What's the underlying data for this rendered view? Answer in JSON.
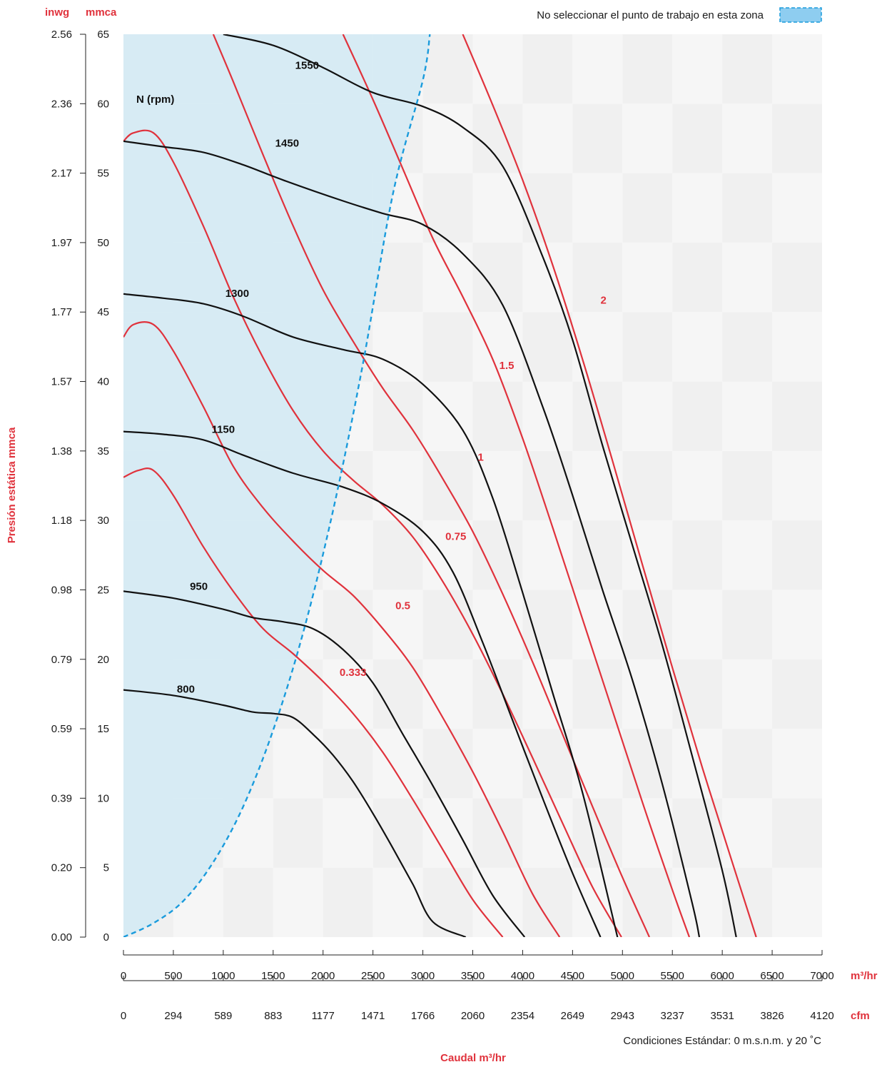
{
  "chart_data": {
    "type": "line",
    "title": "",
    "units": {
      "left_outer": "inwg",
      "left_inner": "mmca",
      "x_primary": "m³/hr",
      "x_secondary": "cfm"
    },
    "ylabel": "Presión estática mmca",
    "xlabel": "Caudal m³/hr",
    "note": "Condiciones Estándar: 0 m.s.n.m. y 20 ˚C",
    "legend": {
      "text": "No seleccionar el punto de trabajo en esta zona",
      "placement": "top-right",
      "color": "#8ecdf0"
    },
    "rpm_header": "N (rpm)",
    "xlim": [
      0,
      7000
    ],
    "ylim": [
      0,
      65
    ],
    "x_ticks": [
      0,
      500,
      1000,
      1500,
      2000,
      2500,
      3000,
      3500,
      4000,
      4500,
      5000,
      5500,
      6000,
      6500,
      7000
    ],
    "x_tick_labels": [
      "0",
      "500",
      "1000",
      "1500",
      "2000",
      "2500",
      "3000",
      "3500",
      "4000",
      "4500",
      "5000",
      "5500",
      "6000",
      "6500",
      "7000"
    ],
    "cfm_tick_labels": [
      "0",
      "294",
      "589",
      "883",
      "1177",
      "1471",
      "1766",
      "2060",
      "2354",
      "2649",
      "2943",
      "3237",
      "3531",
      "3826",
      "4120"
    ],
    "y_ticks": [
      0,
      5,
      10,
      15,
      20,
      25,
      30,
      35,
      40,
      45,
      50,
      55,
      60,
      65
    ],
    "y_tick_labels": [
      "0",
      "5",
      "10",
      "15",
      "20",
      "25",
      "30",
      "35",
      "40",
      "45",
      "50",
      "55",
      "60",
      "65"
    ],
    "inwg_tick_labels": [
      "0.00",
      "0.20",
      "0.39",
      "0.59",
      "0.79",
      "0.98",
      "1.18",
      "1.38",
      "1.57",
      "1.77",
      "1.97",
      "2.17",
      "2.36",
      "2.56"
    ],
    "colors": {
      "rpm": "#111111",
      "power": "#e0323c",
      "zone": "#d4eaf4",
      "boundary": "#1a9bdc",
      "band": "#f1f1f1",
      "unit_text": "#e0323c"
    },
    "rpm_curves": [
      {
        "name": "800",
        "label_at": [
          625,
          17.6
        ],
        "points": [
          [
            0,
            17.8
          ],
          [
            500,
            17.4
          ],
          [
            1000,
            16.7
          ],
          [
            1300,
            16.2
          ],
          [
            1500,
            16.1
          ],
          [
            1700,
            15.8
          ],
          [
            1900,
            14.6
          ],
          [
            2100,
            13.1
          ],
          [
            2300,
            11.2
          ],
          [
            2500,
            8.9
          ],
          [
            2700,
            6.4
          ],
          [
            2900,
            3.8
          ],
          [
            3100,
            1.1
          ],
          [
            3430,
            0
          ]
        ]
      },
      {
        "name": "950",
        "label_at": [
          755,
          25.0
        ],
        "points": [
          [
            0,
            24.9
          ],
          [
            500,
            24.4
          ],
          [
            1000,
            23.6
          ],
          [
            1300,
            23.0
          ],
          [
            1600,
            22.7
          ],
          [
            1900,
            22.2
          ],
          [
            2200,
            20.7
          ],
          [
            2500,
            18.3
          ],
          [
            2800,
            14.6
          ],
          [
            3100,
            10.9
          ],
          [
            3400,
            7.0
          ],
          [
            3700,
            3.0
          ],
          [
            4020,
            0
          ]
        ]
      },
      {
        "name": "1150",
        "label_at": [
          1000,
          36.3
        ],
        "points": [
          [
            0,
            36.4
          ],
          [
            400,
            36.2
          ],
          [
            800,
            35.8
          ],
          [
            1200,
            34.7
          ],
          [
            1700,
            33.4
          ],
          [
            2200,
            32.4
          ],
          [
            2600,
            31.2
          ],
          [
            3000,
            29.2
          ],
          [
            3300,
            26.3
          ],
          [
            3600,
            21.2
          ],
          [
            3900,
            15.6
          ],
          [
            4200,
            10.0
          ],
          [
            4500,
            4.6
          ],
          [
            4780,
            0
          ]
        ]
      },
      {
        "name": "1300",
        "label_at": [
          1140,
          46.1
        ],
        "points": [
          [
            0,
            46.3
          ],
          [
            400,
            46.0
          ],
          [
            800,
            45.6
          ],
          [
            1200,
            44.7
          ],
          [
            1700,
            43.2
          ],
          [
            2200,
            42.3
          ],
          [
            2600,
            41.6
          ],
          [
            3000,
            39.8
          ],
          [
            3400,
            36.5
          ],
          [
            3700,
            31.6
          ],
          [
            4000,
            24.8
          ],
          [
            4300,
            17.6
          ],
          [
            4600,
            10.4
          ],
          [
            4950,
            0
          ]
        ]
      },
      {
        "name": "1450",
        "label_at": [
          1640,
          56.9
        ],
        "points": [
          [
            0,
            57.3
          ],
          [
            400,
            56.9
          ],
          [
            800,
            56.5
          ],
          [
            1200,
            55.6
          ],
          [
            1600,
            54.5
          ],
          [
            2200,
            53.0
          ],
          [
            2600,
            52.1
          ],
          [
            3000,
            51.3
          ],
          [
            3400,
            49.2
          ],
          [
            3800,
            45.5
          ],
          [
            4200,
            38.2
          ],
          [
            4500,
            31.8
          ],
          [
            4800,
            25.0
          ],
          [
            5100,
            18.5
          ],
          [
            5400,
            11.0
          ],
          [
            5700,
            2.4
          ],
          [
            5770,
            0
          ]
        ]
      },
      {
        "name": "1550",
        "label_at": [
          1840,
          62.5
        ],
        "points": [
          [
            1000,
            65.0
          ],
          [
            1500,
            64.2
          ],
          [
            2000,
            62.6
          ],
          [
            2500,
            60.8
          ],
          [
            3000,
            59.8
          ],
          [
            3400,
            58.3
          ],
          [
            3800,
            55.5
          ],
          [
            4200,
            49.0
          ],
          [
            4500,
            43.0
          ],
          [
            4800,
            35.4
          ],
          [
            5100,
            28.2
          ],
          [
            5400,
            21.0
          ],
          [
            5700,
            13.0
          ],
          [
            6000,
            4.8
          ],
          [
            6140,
            0
          ]
        ]
      }
    ],
    "power_curves": [
      {
        "name": "0.333",
        "label_at": [
          2300,
          18.8
        ],
        "points": [
          [
            0,
            33.1
          ],
          [
            150,
            33.6
          ],
          [
            300,
            33.6
          ],
          [
            500,
            31.8
          ],
          [
            800,
            28.1
          ],
          [
            1100,
            24.9
          ],
          [
            1400,
            22.2
          ],
          [
            1700,
            20.4
          ],
          [
            2000,
            18.4
          ],
          [
            2300,
            16.1
          ],
          [
            2600,
            13.3
          ],
          [
            2900,
            9.9
          ],
          [
            3200,
            6.3
          ],
          [
            3500,
            2.7
          ],
          [
            3800,
            0
          ]
        ]
      },
      {
        "name": "0.5",
        "label_at": [
          2800,
          23.6
        ],
        "points": [
          [
            0,
            43.2
          ],
          [
            100,
            44.1
          ],
          [
            300,
            44.1
          ],
          [
            500,
            42.2
          ],
          [
            800,
            38.2
          ],
          [
            1100,
            33.9
          ],
          [
            1400,
            30.9
          ],
          [
            1700,
            28.5
          ],
          [
            2000,
            26.4
          ],
          [
            2300,
            24.6
          ],
          [
            2600,
            22.2
          ],
          [
            2900,
            19.4
          ],
          [
            3200,
            15.8
          ],
          [
            3500,
            11.9
          ],
          [
            3800,
            7.6
          ],
          [
            4100,
            3.1
          ],
          [
            4370,
            0
          ]
        ]
      },
      {
        "name": "0.75",
        "label_at": [
          3330,
          28.6
        ],
        "points": [
          [
            0,
            57.3
          ],
          [
            100,
            57.9
          ],
          [
            300,
            57.9
          ],
          [
            500,
            55.8
          ],
          [
            800,
            51.2
          ],
          [
            1100,
            46.1
          ],
          [
            1400,
            41.7
          ],
          [
            1700,
            37.9
          ],
          [
            2000,
            35.0
          ],
          [
            2300,
            32.9
          ],
          [
            2600,
            31.1
          ],
          [
            2900,
            28.8
          ],
          [
            3200,
            25.6
          ],
          [
            3500,
            21.8
          ],
          [
            3800,
            17.5
          ],
          [
            4100,
            12.9
          ],
          [
            4400,
            8.2
          ],
          [
            4700,
            3.6
          ],
          [
            4990,
            0
          ]
        ]
      },
      {
        "name": "1",
        "label_at": [
          3580,
          34.3
        ],
        "points": [
          [
            900,
            65.0
          ],
          [
            1100,
            61.6
          ],
          [
            1400,
            56.3
          ],
          [
            1700,
            51.2
          ],
          [
            2000,
            46.6
          ],
          [
            2300,
            42.9
          ],
          [
            2600,
            39.5
          ],
          [
            2900,
            36.5
          ],
          [
            3200,
            33.0
          ],
          [
            3500,
            29.2
          ],
          [
            3800,
            24.7
          ],
          [
            4100,
            19.8
          ],
          [
            4400,
            14.6
          ],
          [
            4700,
            9.4
          ],
          [
            5000,
            4.3
          ],
          [
            5270,
            0
          ]
        ]
      },
      {
        "name": "1.5",
        "label_at": [
          3840,
          40.9
        ],
        "points": [
          [
            2200,
            65.0
          ],
          [
            2500,
            60.3
          ],
          [
            2800,
            55.3
          ],
          [
            3100,
            50.3
          ],
          [
            3400,
            46.1
          ],
          [
            3700,
            41.6
          ],
          [
            4000,
            35.9
          ],
          [
            4300,
            29.5
          ],
          [
            4600,
            22.9
          ],
          [
            4900,
            16.3
          ],
          [
            5200,
            9.7
          ],
          [
            5500,
            3.4
          ],
          [
            5670,
            0
          ]
        ]
      },
      {
        "name": "2",
        "label_at": [
          4810,
          45.6
        ],
        "points": [
          [
            3400,
            65.0
          ],
          [
            3700,
            59.9
          ],
          [
            4000,
            54.5
          ],
          [
            4300,
            48.4
          ],
          [
            4600,
            41.6
          ],
          [
            4900,
            34.3
          ],
          [
            5200,
            26.8
          ],
          [
            5500,
            19.4
          ],
          [
            5800,
            12.2
          ],
          [
            6100,
            5.4
          ],
          [
            6340,
            0
          ]
        ]
      }
    ],
    "zone_boundary": [
      [
        0,
        0
      ],
      [
        300,
        1.0
      ],
      [
        600,
        2.6
      ],
      [
        900,
        5.4
      ],
      [
        1200,
        9.4
      ],
      [
        1500,
        14.9
      ],
      [
        1800,
        21.9
      ],
      [
        2100,
        30.7
      ],
      [
        2400,
        41.3
      ],
      [
        2700,
        53.5
      ],
      [
        3000,
        61.7
      ],
      [
        3070,
        65.0
      ]
    ]
  }
}
